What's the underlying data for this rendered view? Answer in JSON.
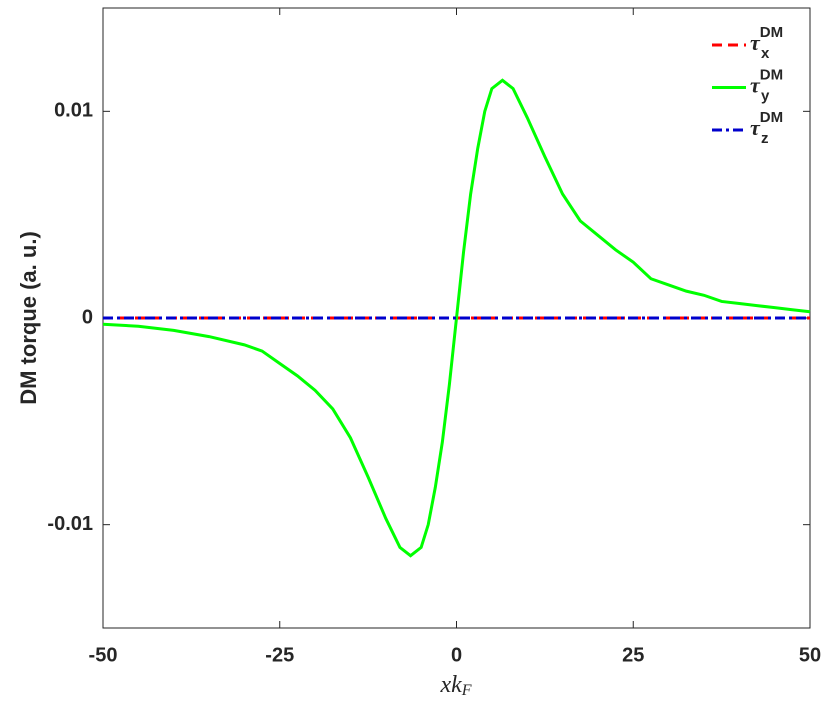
{
  "chart_data": {
    "type": "line",
    "xlabel": "xk",
    "xlabel_sub": "F",
    "ylabel": "DM torque (a. u.)",
    "x": [
      -50,
      -45,
      -40,
      -35,
      -30,
      -27.5,
      -25,
      -22.5,
      -20,
      -17.5,
      -15,
      -12.5,
      -10,
      -8,
      -6.5,
      -5,
      -4,
      -3,
      -2,
      -1,
      0,
      1,
      2,
      3,
      4,
      5,
      6.5,
      8,
      10,
      12.5,
      15,
      17.5,
      20,
      22.5,
      25,
      27.5,
      30,
      32.5,
      35,
      37.5,
      40,
      42.5,
      45,
      47.5,
      50
    ],
    "series": [
      {
        "name": "τ",
        "name_sub": "x",
        "name_sup": "DM",
        "color": "#ff0000",
        "dash": "dashed",
        "values": [
          0,
          0,
          0,
          0,
          0,
          0,
          0,
          0,
          0,
          0,
          0,
          0,
          0,
          0,
          0,
          0,
          0,
          0,
          0,
          0,
          0,
          0,
          0,
          0,
          0,
          0,
          0,
          0,
          0,
          0,
          0,
          0,
          0,
          0,
          0,
          0,
          0,
          0,
          0,
          0,
          0,
          0,
          0,
          0,
          0
        ]
      },
      {
        "name": "τ",
        "name_sub": "y",
        "name_sup": "DM",
        "color": "#00ff00",
        "dash": "solid",
        "values": [
          -0.0003,
          -0.0004,
          -0.0006,
          -0.0009,
          -0.0013,
          -0.0016,
          -0.0022,
          -0.0028,
          -0.0035,
          -0.0044,
          -0.0058,
          -0.0077,
          -0.0097,
          -0.0111,
          -0.0115,
          -0.0111,
          -0.01,
          -0.0082,
          -0.006,
          -0.0032,
          0,
          0.0032,
          0.006,
          0.0082,
          0.01,
          0.0111,
          0.0115,
          0.0111,
          0.0097,
          0.0078,
          0.006,
          0.0047,
          0.004,
          0.0033,
          0.0027,
          0.0019,
          0.0016,
          0.0013,
          0.0011,
          0.0008,
          0.0007,
          0.0006,
          0.0005,
          0.0004,
          0.0003
        ]
      },
      {
        "name": "τ",
        "name_sub": "z",
        "name_sup": "DM",
        "color": "#0000cc",
        "dash": "dashdot",
        "values": [
          0,
          0,
          0,
          0,
          0,
          0,
          0,
          0,
          0,
          0,
          0,
          0,
          0,
          0,
          0,
          0,
          0,
          0,
          0,
          0,
          0,
          0,
          0,
          0,
          0,
          0,
          0,
          0,
          0,
          0,
          0,
          0,
          0,
          0,
          0,
          0,
          0,
          0,
          0,
          0,
          0,
          0,
          0,
          0,
          0
        ]
      }
    ],
    "xlim": [
      -50,
      50
    ],
    "xticks": [
      -50,
      -25,
      0,
      25,
      50
    ],
    "ylim": [
      -0.015,
      0.015
    ],
    "yticks": [
      -0.01,
      0,
      0.01
    ],
    "legend": "upper right"
  }
}
